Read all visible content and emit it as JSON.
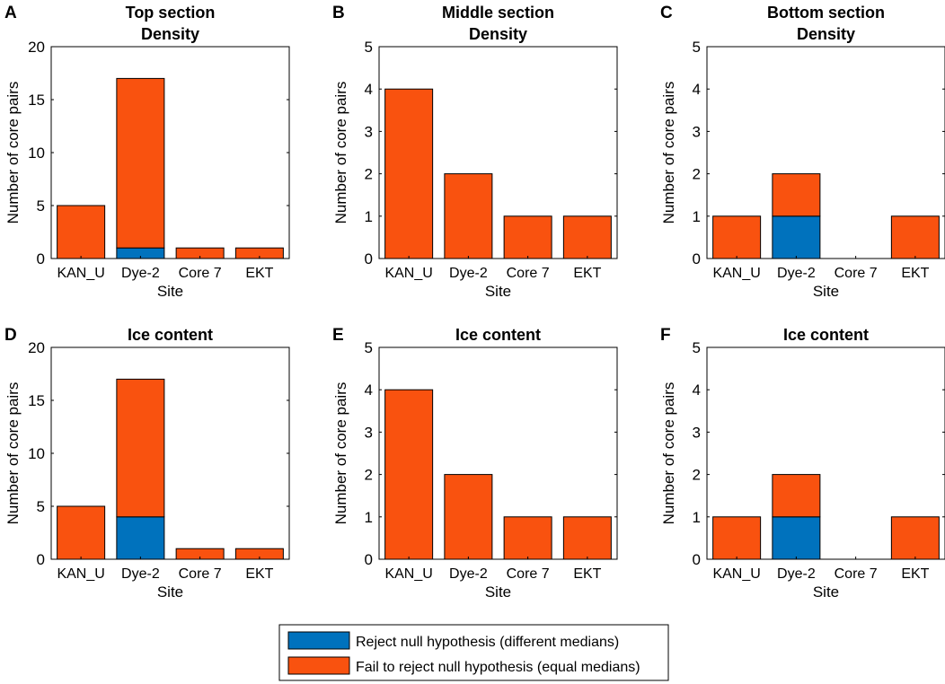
{
  "colors": {
    "reject": "#0072BD",
    "fail": "#F9520F"
  },
  "legend": {
    "reject_label": "Reject null hypothesis (different medians)",
    "fail_label": "Fail to reject null hypothesis (equal medians)"
  },
  "chart_data": [
    {
      "panel": "A",
      "type": "bar",
      "stacked": true,
      "title": [
        "Top section",
        "Density"
      ],
      "xlabel": "Site",
      "ylabel": "Number of core pairs",
      "categories": [
        "KAN_U",
        "Dye-2",
        "Core 7",
        "EKT"
      ],
      "ylim": [
        0,
        20
      ],
      "yticks": [
        0,
        5,
        10,
        15,
        20
      ],
      "series": [
        {
          "name": "Reject null hypothesis (different medians)",
          "values": [
            0,
            1,
            0,
            0
          ]
        },
        {
          "name": "Fail to reject null hypothesis (equal medians)",
          "values": [
            5,
            16,
            1,
            1
          ]
        }
      ]
    },
    {
      "panel": "B",
      "type": "bar",
      "stacked": true,
      "title": [
        "Middle section",
        "Density"
      ],
      "xlabel": "Site",
      "ylabel": "Number of core pairs",
      "categories": [
        "KAN_U",
        "Dye-2",
        "Core 7",
        "EKT"
      ],
      "ylim": [
        0,
        5
      ],
      "yticks": [
        0,
        1,
        2,
        3,
        4,
        5
      ],
      "series": [
        {
          "name": "Reject null hypothesis (different medians)",
          "values": [
            0,
            0,
            0,
            0
          ]
        },
        {
          "name": "Fail to reject null hypothesis (equal medians)",
          "values": [
            4,
            2,
            1,
            1
          ]
        }
      ]
    },
    {
      "panel": "C",
      "type": "bar",
      "stacked": true,
      "title": [
        "Bottom section",
        "Density"
      ],
      "xlabel": "Site",
      "ylabel": "Number of core pairs",
      "categories": [
        "KAN_U",
        "Dye-2",
        "Core 7",
        "EKT"
      ],
      "ylim": [
        0,
        5
      ],
      "yticks": [
        0,
        1,
        2,
        3,
        4,
        5
      ],
      "series": [
        {
          "name": "Reject null hypothesis (different medians)",
          "values": [
            0,
            1,
            0,
            0
          ]
        },
        {
          "name": "Fail to reject null hypothesis (equal medians)",
          "values": [
            1,
            1,
            0,
            1
          ]
        }
      ]
    },
    {
      "panel": "D",
      "type": "bar",
      "stacked": true,
      "title": [
        "Ice content"
      ],
      "xlabel": "Site",
      "ylabel": "Number of core pairs",
      "categories": [
        "KAN_U",
        "Dye-2",
        "Core 7",
        "EKT"
      ],
      "ylim": [
        0,
        20
      ],
      "yticks": [
        0,
        5,
        10,
        15,
        20
      ],
      "series": [
        {
          "name": "Reject null hypothesis (different medians)",
          "values": [
            0,
            4,
            0,
            0
          ]
        },
        {
          "name": "Fail to reject null hypothesis (equal medians)",
          "values": [
            5,
            13,
            1,
            1
          ]
        }
      ]
    },
    {
      "panel": "E",
      "type": "bar",
      "stacked": true,
      "title": [
        "Ice content"
      ],
      "xlabel": "Site",
      "ylabel": "Number of core pairs",
      "categories": [
        "KAN_U",
        "Dye-2",
        "Core 7",
        "EKT"
      ],
      "ylim": [
        0,
        5
      ],
      "yticks": [
        0,
        1,
        2,
        3,
        4,
        5
      ],
      "series": [
        {
          "name": "Reject null hypothesis (different medians)",
          "values": [
            0,
            0,
            0,
            0
          ]
        },
        {
          "name": "Fail to reject null hypothesis (equal medians)",
          "values": [
            4,
            2,
            1,
            1
          ]
        }
      ]
    },
    {
      "panel": "F",
      "type": "bar",
      "stacked": true,
      "title": [
        "Ice content"
      ],
      "xlabel": "Site",
      "ylabel": "Number of core pairs",
      "categories": [
        "KAN_U",
        "Dye-2",
        "Core 7",
        "EKT"
      ],
      "ylim": [
        0,
        5
      ],
      "yticks": [
        0,
        1,
        2,
        3,
        4,
        5
      ],
      "series": [
        {
          "name": "Reject null hypothesis (different medians)",
          "values": [
            0,
            1,
            0,
            0
          ]
        },
        {
          "name": "Fail to reject null hypothesis (equal medians)",
          "values": [
            1,
            1,
            0,
            1
          ]
        }
      ]
    }
  ]
}
